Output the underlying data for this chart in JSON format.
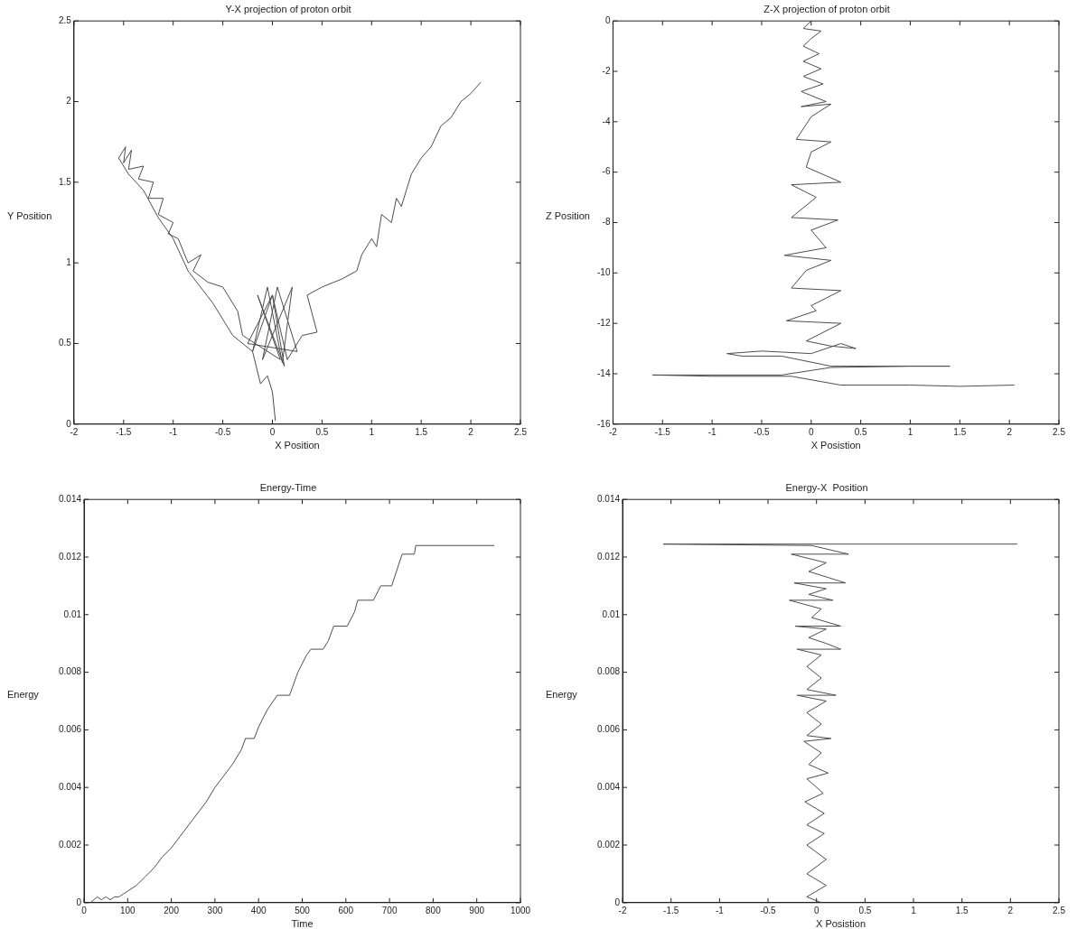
{
  "chart_data": [
    {
      "type": "line",
      "title": "Y-X projection of proton orbit",
      "xlabel": "X Position",
      "ylabel": "Y Position",
      "marker": "none",
      "xlim": [
        -2,
        2.5
      ],
      "xticks": [
        -2,
        -1.5,
        -1,
        -0.5,
        0,
        0.5,
        1,
        1.5,
        2,
        2.5
      ],
      "ylim": [
        0,
        2.5
      ],
      "yticks": [
        0,
        0.5,
        1,
        1.5,
        2,
        2.5
      ],
      "series": [
        {
          "color": "#4d4d4d",
          "x": [
            0.03,
            0.0,
            -0.05,
            -0.12,
            -0.2,
            -0.05,
            0.1,
            0.2,
            -0.1,
            0.05,
            0.25,
            -0.25,
            0.0,
            0.12,
            -0.15,
            0.08,
            -0.3,
            -0.35,
            -0.5,
            -0.65,
            -0.8,
            -0.72,
            -0.85,
            -0.95,
            -1.05,
            -1.0,
            -1.15,
            -1.1,
            -1.25,
            -1.2,
            -1.35,
            -1.3,
            -1.45,
            -1.42,
            -1.5,
            -1.48,
            -1.55,
            -1.45,
            -1.3,
            -1.15,
            -1.0,
            -0.85,
            -0.6,
            -0.4,
            -0.2,
            0.0,
            0.15,
            0.3,
            0.45,
            0.35,
            0.5,
            0.7,
            0.85,
            0.9,
            1.0,
            1.05,
            1.1,
            1.2,
            1.25,
            1.3,
            1.35,
            1.4,
            1.5,
            1.6,
            1.7,
            1.8,
            1.9,
            2.0,
            2.1
          ],
          "values": [
            0.02,
            0.2,
            0.3,
            0.25,
            0.45,
            0.85,
            0.38,
            0.85,
            0.4,
            0.85,
            0.45,
            0.5,
            0.8,
            0.36,
            0.8,
            0.4,
            0.55,
            0.7,
            0.85,
            0.88,
            0.95,
            1.05,
            1.0,
            1.15,
            1.18,
            1.25,
            1.3,
            1.4,
            1.4,
            1.5,
            1.52,
            1.6,
            1.58,
            1.7,
            1.62,
            1.72,
            1.65,
            1.55,
            1.45,
            1.28,
            1.15,
            0.95,
            0.75,
            0.55,
            0.45,
            0.8,
            0.4,
            0.55,
            0.57,
            0.8,
            0.85,
            0.9,
            0.95,
            1.05,
            1.15,
            1.1,
            1.3,
            1.25,
            1.4,
            1.35,
            1.45,
            1.55,
            1.65,
            1.72,
            1.85,
            1.9,
            2.0,
            2.05,
            2.12
          ]
        }
      ]
    },
    {
      "type": "line",
      "title": "Z-X projection of proton orbit",
      "xlabel": "X Posistion",
      "ylabel": "Z Position",
      "marker": "none",
      "xlim": [
        -2,
        2.5
      ],
      "xticks": [
        -2,
        -1.5,
        -1,
        -0.5,
        0,
        0.5,
        1,
        1.5,
        2,
        2.5
      ],
      "ylim": [
        -16,
        0
      ],
      "yticks": [
        -16,
        -14,
        -12,
        -10,
        -8,
        -6,
        -4,
        -2,
        0
      ],
      "series": [
        {
          "color": "#4d4d4d",
          "x": [
            0,
            -0.08,
            0.1,
            0,
            -0.08,
            0.08,
            -0.08,
            0.1,
            -0.08,
            0.12,
            -0.1,
            0.15,
            -0.1,
            0.2,
            0,
            -0.15,
            0.2,
            0,
            -0.05,
            0.3,
            -0.2,
            0.05,
            -0.2,
            0.27,
            0,
            0.15,
            -0.27,
            0.2,
            -0.05,
            -0.2,
            0.3,
            0,
            0.05,
            -0.25,
            0.3,
            -0.05,
            0.2,
            0.45,
            0.3,
            0,
            -0.5,
            -0.85,
            -0.7,
            -0.3,
            0.2,
            0.8,
            1.4,
            1.0,
            0.2,
            -0.3,
            -0.9,
            -1.6,
            -1.0,
            -0.2,
            0.3,
            1.0,
            1.5,
            2.05
          ],
          "values": [
            0,
            -0.3,
            -0.4,
            -0.7,
            -1.0,
            -1.3,
            -1.6,
            -1.9,
            -2.2,
            -2.5,
            -2.8,
            -3.2,
            -3.4,
            -3.3,
            -3.8,
            -4.7,
            -4.8,
            -5.2,
            -5.8,
            -6.4,
            -6.5,
            -7.0,
            -7.8,
            -7.9,
            -8.3,
            -9.0,
            -9.3,
            -9.5,
            -9.9,
            -10.6,
            -10.7,
            -11.3,
            -11.5,
            -11.9,
            -12.0,
            -12.7,
            -12.9,
            -13.0,
            -12.8,
            -13.2,
            -13.1,
            -13.2,
            -13.3,
            -13.3,
            -13.7,
            -13.7,
            -13.7,
            -13.7,
            -13.75,
            -14.05,
            -14.05,
            -14.05,
            -14.1,
            -14.1,
            -14.45,
            -14.45,
            -14.5,
            -14.45
          ]
        }
      ]
    },
    {
      "type": "line",
      "title": "Energy-Time",
      "xlabel": "Time",
      "ylabel": "Energy",
      "marker": "none",
      "xlim": [
        0,
        1000
      ],
      "xticks": [
        0,
        100,
        200,
        300,
        400,
        500,
        600,
        700,
        800,
        900,
        1000
      ],
      "ylim": [
        0,
        0.014
      ],
      "yticks": [
        0,
        0.002,
        0.004,
        0.006,
        0.008,
        0.01,
        0.012,
        0.014
      ],
      "series": [
        {
          "color": "#4d4d4d",
          "x": [
            0,
            15,
            30,
            40,
            50,
            60,
            70,
            80,
            90,
            100,
            120,
            140,
            160,
            180,
            200,
            220,
            240,
            260,
            280,
            300,
            320,
            340,
            360,
            370,
            390,
            400,
            420,
            443,
            471,
            490,
            510,
            520,
            548,
            560,
            572,
            603,
            620,
            627,
            663,
            680,
            705,
            729,
            757,
            760,
            940
          ],
          "values": [
            0,
            0,
            0.0002,
            0.0001,
            0.0002,
            0.0001,
            0.0002,
            0.0002,
            0.0003,
            0.0004,
            0.0006,
            0.0009,
            0.0012,
            0.0016,
            0.0019,
            0.0023,
            0.0027,
            0.0031,
            0.0035,
            0.004,
            0.0044,
            0.0048,
            0.0053,
            0.0057,
            0.0057,
            0.0061,
            0.0067,
            0.0072,
            0.0072,
            0.008,
            0.0086,
            0.0088,
            0.0088,
            0.0091,
            0.0096,
            0.0096,
            0.0101,
            0.0105,
            0.0105,
            0.011,
            0.011,
            0.0121,
            0.0121,
            0.0124,
            0.0124
          ]
        }
      ]
    },
    {
      "type": "line",
      "title": "Energy-X  Position",
      "xlabel": "X Posistion",
      "ylabel": "Energy",
      "marker": "none",
      "xlim": [
        -2,
        2.5
      ],
      "xticks": [
        -2,
        -1.5,
        -1,
        -0.5,
        0,
        0.5,
        1,
        1.5,
        2,
        2.5
      ],
      "ylim": [
        0,
        0.014
      ],
      "yticks": [
        0,
        0.002,
        0.004,
        0.006,
        0.008,
        0.01,
        0.012,
        0.014
      ],
      "series": [
        {
          "color": "#4d4d4d",
          "x": [
            0.05,
            -0.1,
            0.1,
            -0.1,
            0.1,
            -0.1,
            0.08,
            -0.1,
            0.08,
            -0.12,
            0.07,
            -0.1,
            0.12,
            -0.08,
            0.05,
            -0.13,
            0.15,
            -0.1,
            0.05,
            -0.1,
            0.1,
            -0.2,
            0.2,
            -0.1,
            0.05,
            -0.1,
            0.05,
            -0.2,
            0.25,
            0.1,
            -0.08,
            0.1,
            -0.22,
            0.25,
            -0.05,
            0.05,
            -0.28,
            0.17,
            -0.08,
            0.1,
            -0.23,
            0.3,
            -0.08,
            0.1,
            -0.26,
            0.33,
            -0.05,
            -1.58,
            2.07
          ],
          "values": [
            0,
            0.0002,
            0.0006,
            0.001,
            0.0015,
            0.002,
            0.0024,
            0.0027,
            0.0031,
            0.0035,
            0.0038,
            0.0043,
            0.0045,
            0.0048,
            0.0052,
            0.0056,
            0.0057,
            0.0058,
            0.0062,
            0.0066,
            0.007,
            0.0072,
            0.0072,
            0.0074,
            0.0078,
            0.0082,
            0.0086,
            0.0088,
            0.0088,
            0.009,
            0.0092,
            0.0095,
            0.0096,
            0.0096,
            0.0099,
            0.0102,
            0.0105,
            0.0105,
            0.0107,
            0.0109,
            0.0111,
            0.0111,
            0.0115,
            0.0118,
            0.0121,
            0.0121,
            0.0124,
            0.01245,
            0.01245
          ]
        }
      ]
    }
  ]
}
